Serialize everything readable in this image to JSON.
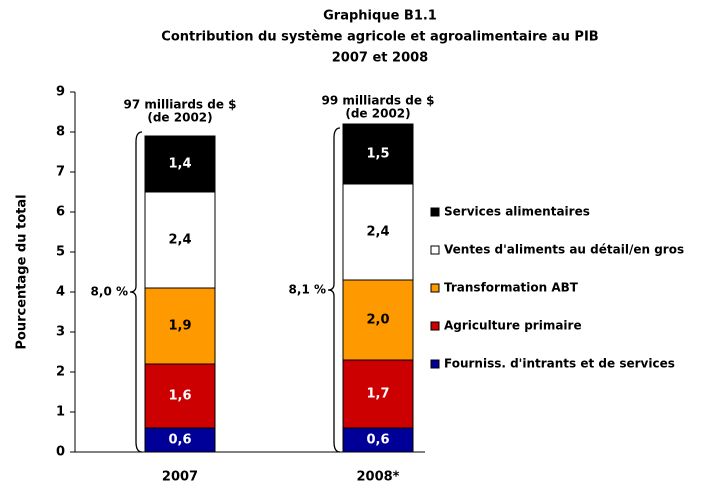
{
  "chart_data": {
    "type": "stacked_bar",
    "title": [
      "Graphique B1.1",
      "Contribution du système agricole et agroalimentaire au PIB",
      "2007 et 2008"
    ],
    "ylabel": "Pourcentage du total",
    "categories": [
      "2007",
      "2008*"
    ],
    "series": [
      {
        "name": "Fourniss. d'intrants et de services",
        "color": "#000099",
        "values": [
          0.6,
          0.6
        ],
        "value_labels": [
          "0,6",
          "0,6"
        ]
      },
      {
        "name": "Agriculture primaire",
        "color": "#cc0000",
        "values": [
          1.6,
          1.7
        ],
        "value_labels": [
          "1,6",
          "1,7"
        ]
      },
      {
        "name": "Transformation ABT",
        "color": "#ff9900",
        "values": [
          1.9,
          2.0
        ],
        "value_labels": [
          "1,9",
          "2,0"
        ]
      },
      {
        "name": "Ventes d'aliments au détail/en gros",
        "color": "#ffffff",
        "values": [
          2.4,
          2.4
        ],
        "value_labels": [
          "2,4",
          "2,4"
        ]
      },
      {
        "name": "Services alimentaires",
        "color": "#000000",
        "values": [
          1.4,
          1.5
        ],
        "value_labels": [
          "1,4",
          "1,5"
        ]
      }
    ],
    "totals": {
      "values": [
        8.0,
        8.1
      ],
      "value_labels": [
        "8,0 %",
        "8,1 %"
      ]
    },
    "annotations": [
      [
        "97 milliards de $",
        "(de 2002)"
      ],
      [
        "99 milliards de $",
        "(de 2002)"
      ]
    ],
    "ylim": [
      0,
      9
    ],
    "yticks": [
      0,
      1,
      2,
      3,
      4,
      5,
      6,
      7,
      8,
      9
    ],
    "grid": false,
    "legend": "right"
  }
}
